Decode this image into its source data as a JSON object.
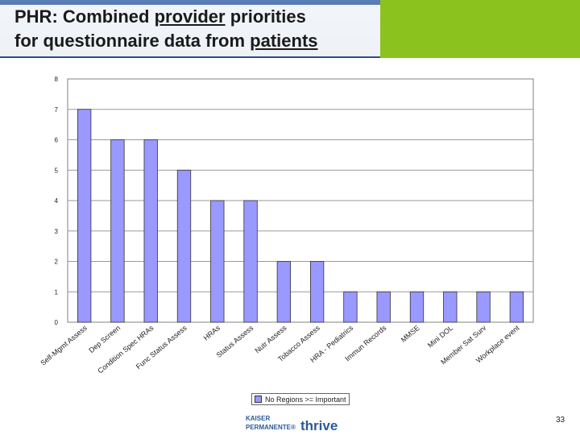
{
  "header": {
    "title_line1_parts": [
      "PHR: Combined ",
      "provider",
      " priorities"
    ],
    "title_line2_parts": [
      "for questionnaire data from ",
      "patients"
    ],
    "blue_color": "#3a5f9c",
    "green_color": "#8cc21e"
  },
  "chart_data": {
    "type": "bar",
    "categories": [
      "Self-Mgmt Assess",
      "Dep Screen",
      "Condition Spec HRAs",
      "Func Status Assess",
      "HRAs",
      "Status Assess",
      "Nutr Assess",
      "Tobacco Assess",
      "HRA - Pediatrics",
      "Immun Records",
      "MMSE",
      "Mini DOL",
      "Member Sat Surv",
      "Workplace event"
    ],
    "series": [
      {
        "name": "No Regions >= Important",
        "values": [
          7,
          6,
          6,
          5,
          4,
          4,
          2,
          2,
          1,
          1,
          1,
          1,
          1,
          1
        ],
        "color": "#9999ff"
      }
    ],
    "ylim": [
      0,
      8
    ],
    "yticks": [
      "0",
      "1",
      "2",
      "3",
      "4",
      "5",
      "6",
      "7",
      "8"
    ],
    "grid": true,
    "legend_position": "bottom",
    "title": "",
    "xlabel": "",
    "ylabel": ""
  },
  "legend": {
    "label": "No Regions >= Important"
  },
  "footer": {
    "kp_line1": "KAISER",
    "kp_line2": "PERMANENTE®",
    "brand": "thrive",
    "page_number": "33"
  }
}
